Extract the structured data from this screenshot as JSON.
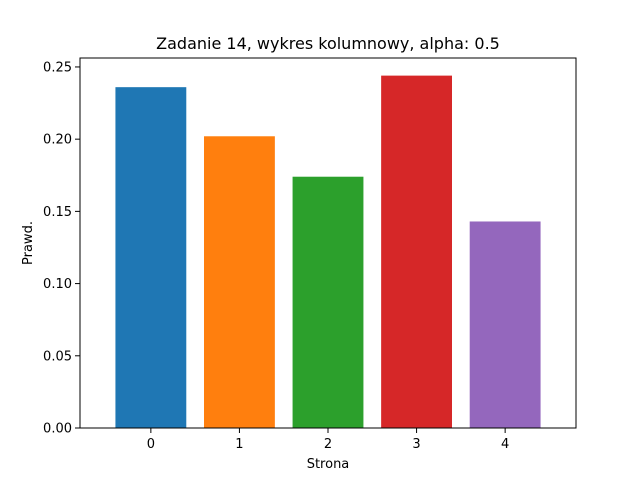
{
  "chart_data": {
    "type": "bar",
    "title": "Zadanie 14, wykres kolumnowy, alpha: 0.5",
    "xlabel": "Strona",
    "ylabel": "Prawd.",
    "categories": [
      "0",
      "1",
      "2",
      "3",
      "4"
    ],
    "values": [
      0.236,
      0.202,
      0.174,
      0.244,
      0.143
    ],
    "colors": [
      "#1f77b4",
      "#ff7f0e",
      "#2ca02c",
      "#d62728",
      "#9467bd"
    ],
    "ylim": [
      0,
      0.25
    ],
    "yticks": [
      0.0,
      0.05,
      0.1,
      0.15,
      0.2,
      0.25
    ],
    "ytick_labels": [
      "0.00",
      "0.05",
      "0.10",
      "0.15",
      "0.20",
      "0.25"
    ],
    "grid": false,
    "legend": false
  }
}
